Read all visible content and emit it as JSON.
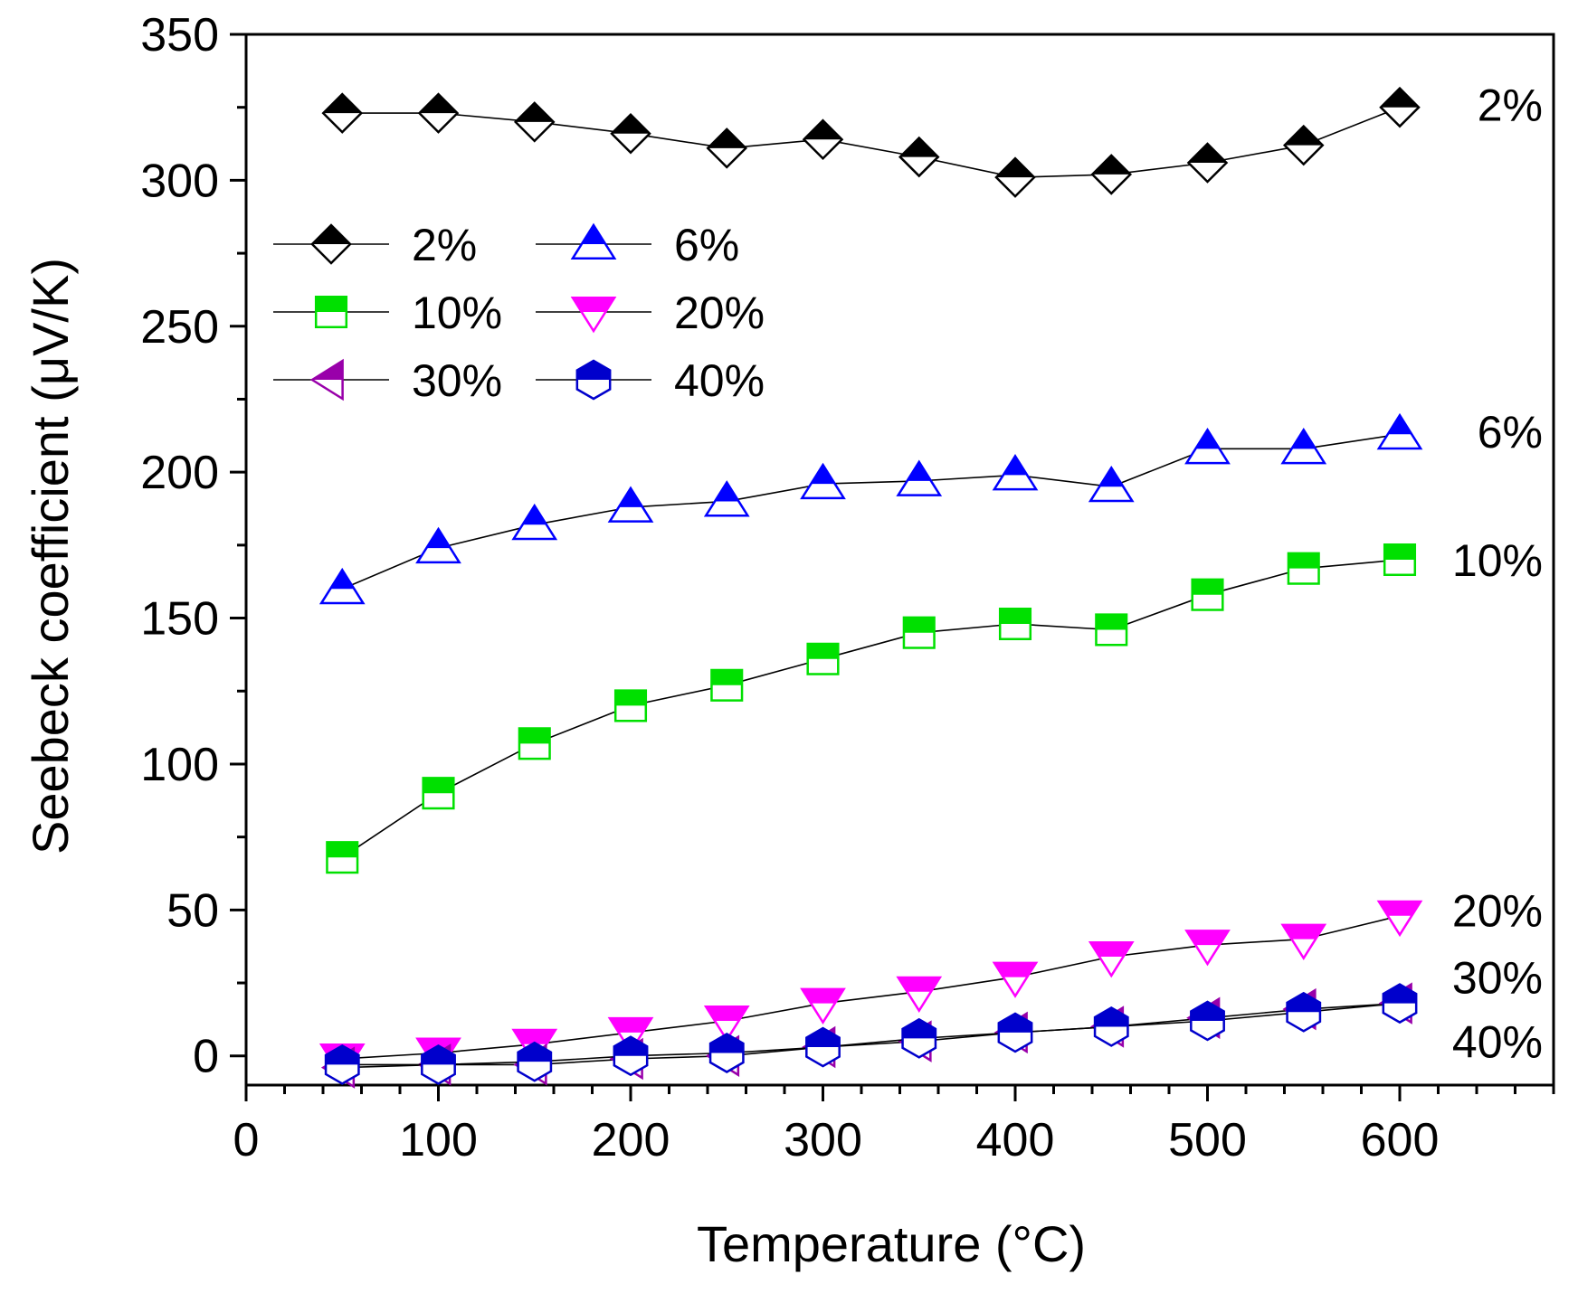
{
  "chart_data": {
    "type": "line",
    "title": "",
    "xlabel": "Temperature (°C)",
    "ylabel": "Seebeck coefficient (μV/K)",
    "xlim": [
      0,
      680
    ],
    "ylim": [
      -10,
      350
    ],
    "xticks": [
      0,
      100,
      200,
      300,
      400,
      500,
      600
    ],
    "yticks": [
      0,
      50,
      100,
      150,
      200,
      250,
      300,
      350
    ],
    "grid": false,
    "legend_position": "upper-left",
    "x": [
      50,
      100,
      150,
      200,
      250,
      300,
      350,
      400,
      450,
      500,
      550,
      600
    ],
    "series": [
      {
        "name": "2%",
        "marker": "diamond",
        "color": "#000000",
        "values": [
          323,
          323,
          320,
          316,
          311,
          314,
          308,
          301,
          302,
          306,
          312,
          325
        ]
      },
      {
        "name": "6%",
        "marker": "triangle-up",
        "color": "#0000ff",
        "values": [
          160,
          174,
          182,
          188,
          190,
          196,
          197,
          199,
          195,
          208,
          208,
          213
        ]
      },
      {
        "name": "10%",
        "marker": "square",
        "color": "#00e000",
        "values": [
          68,
          90,
          107,
          120,
          127,
          136,
          145,
          148,
          146,
          158,
          167,
          170
        ]
      },
      {
        "name": "20%",
        "marker": "triangle-down",
        "color": "#ff00ff",
        "values": [
          -1,
          1,
          4,
          8,
          12,
          18,
          22,
          27,
          34,
          38,
          40,
          48
        ]
      },
      {
        "name": "30%",
        "marker": "triangle-left",
        "color": "#9900aa",
        "values": [
          -4,
          -3,
          -3,
          -1,
          0,
          3,
          5,
          8,
          10,
          13,
          16,
          18
        ]
      },
      {
        "name": "40%",
        "marker": "hexagon",
        "color": "#0000cc",
        "values": [
          -3,
          -3,
          -2,
          0,
          1,
          3,
          6,
          8,
          10,
          12,
          15,
          18
        ]
      }
    ],
    "end_labels": [
      {
        "text": "2%",
        "y": 326
      },
      {
        "text": "6%",
        "y": 214
      },
      {
        "text": "10%",
        "y": 170
      },
      {
        "text": "20%",
        "y": 50
      },
      {
        "text": "30%",
        "y": 27
      },
      {
        "text": "40%",
        "y": 5
      }
    ]
  }
}
